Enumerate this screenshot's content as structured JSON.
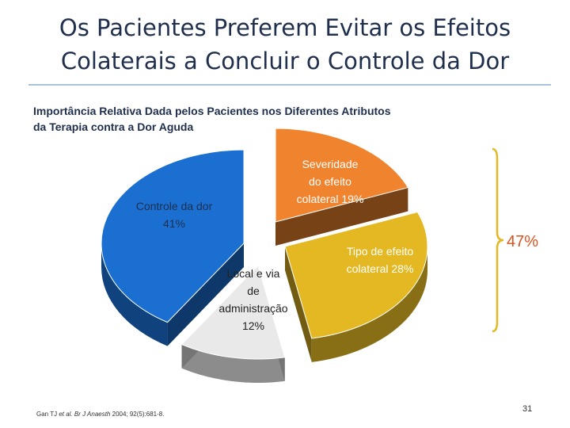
{
  "slide": {
    "title_line1": "Os Pacientes Preferem Evitar os Efeitos",
    "title_line2": "Colaterais a Concluir o Controle da Dor",
    "page_number": "31",
    "citation_authors": "Gan TJ ",
    "citation_etal": "et al.",
    "citation_journal": " Br J Anaesth",
    "citation_rest": " 2004; 92(5):681-8."
  },
  "chart_data": {
    "type": "pie",
    "title_line1": "Importância Relativa Dada pelos Pacientes nos Diferentes Atributos",
    "title_line2": "da Terapia contra a Dor Aguda",
    "slices": [
      {
        "label_lines": [
          "Severidade",
          "do efeito",
          "colateral 19%"
        ],
        "category": "Severidade do efeito colateral",
        "value": 19,
        "color": "#f0832d"
      },
      {
        "label_lines": [
          "Tipo de efeito",
          "colateral 28%"
        ],
        "category": "Tipo de efeito colateral",
        "value": 28,
        "color": "#e3b822"
      },
      {
        "label_lines": [
          "Local e via",
          "de",
          "administração",
          "12%"
        ],
        "category": "Local e via de administração",
        "value": 12,
        "color": "#e9e9e9"
      },
      {
        "label_lines": [
          "Controle da dor",
          "41%"
        ],
        "category": "Controle da dor",
        "value": 41,
        "color": "#1a6fd1"
      }
    ],
    "bracket": {
      "value_text": "47%",
      "color": "#e3b822",
      "text_color": "#d9531e"
    }
  }
}
